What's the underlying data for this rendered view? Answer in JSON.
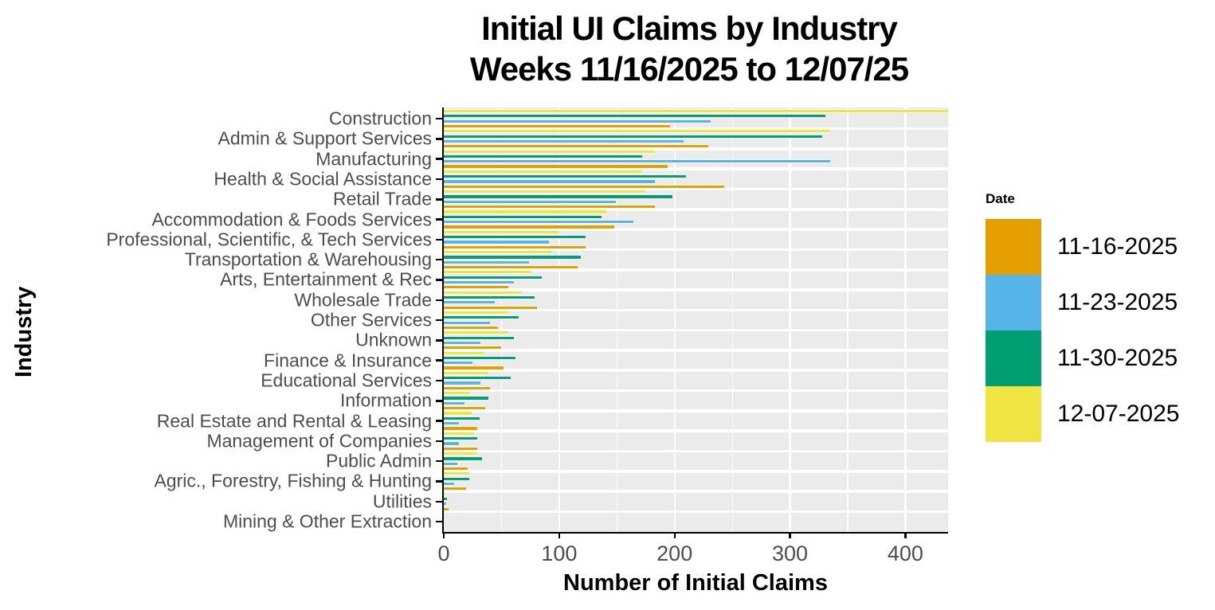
{
  "title": {
    "line1": "Initial UI Claims by Industry",
    "line2": "Weeks  11/16/2025 to 12/07/25"
  },
  "axes": {
    "x_title": "Number of Initial Claims",
    "y_title": "Industry",
    "x_tick_labels": [
      "0",
      "100",
      "200",
      "300",
      "400"
    ],
    "x_tick_values": [
      0,
      100,
      200,
      300,
      400
    ],
    "x_minor_values": [
      50,
      150,
      250,
      350
    ]
  },
  "legend": {
    "title": "Date",
    "items": [
      {
        "label": "11-16-2025",
        "color": "#E69F00"
      },
      {
        "label": "11-23-2025",
        "color": "#56B4E9"
      },
      {
        "label": "11-30-2025",
        "color": "#009E73"
      },
      {
        "label": "12-07-2025",
        "color": "#F0E442"
      }
    ]
  },
  "colors": {
    "panel_background": "#EBEBEB",
    "gridline": "#FFFFFF",
    "axis_text": "#4D4D4D",
    "axis_line": "#000000",
    "series_11_16": "#E69F00",
    "series_11_23": "#56B4E9",
    "series_11_30": "#009E73",
    "series_12_07": "#F0E442"
  },
  "chart_data": {
    "type": "bar",
    "orientation": "horizontal",
    "title": "Initial UI Claims by Industry Weeks 11/16/2025 to 12/07/25",
    "xlabel": "Number of Initial Claims",
    "ylabel": "Industry",
    "xlim": [
      0,
      437
    ],
    "grid": "white major/minor vertical gridlines on gray panel",
    "legend_position": "right",
    "legend_title": "Date",
    "categories": [
      "Construction",
      "Admin & Support Services",
      "Manufacturing",
      "Health & Social Assistance",
      "Retail Trade",
      "Accommodation & Foods Services",
      "Professional, Scientific, & Tech Services",
      "Transportation & Warehousing",
      "Arts, Entertainment & Rec",
      "Wholesale Trade",
      "Other Services",
      "Unknown",
      "Finance & Insurance",
      "Educational Services",
      "Information",
      "Real Estate and Rental & Leasing",
      "Management of Companies",
      "Public Admin",
      "Agric., Forestry, Fishing & Hunting",
      "Utilities",
      "Mining & Other Extraction"
    ],
    "series": [
      {
        "name": "11-16-2025",
        "color": "#E69F00",
        "values": [
          196,
          229,
          194,
          243,
          183,
          148,
          123,
          116,
          56,
          81,
          47,
          50,
          52,
          40,
          36,
          29,
          29,
          21,
          19,
          4,
          0
        ]
      },
      {
        "name": "11-23-2025",
        "color": "#56B4E9",
        "values": [
          231,
          208,
          335,
          183,
          149,
          164,
          91,
          74,
          61,
          44,
          40,
          32,
          25,
          32,
          18,
          13,
          13,
          12,
          9,
          2,
          0
        ]
      },
      {
        "name": "11-30-2025",
        "color": "#009E73",
        "values": [
          331,
          328,
          172,
          210,
          198,
          137,
          123,
          119,
          85,
          79,
          65,
          61,
          62,
          58,
          39,
          31,
          29,
          33,
          22,
          3,
          0
        ]
      },
      {
        "name": "12-07-2025",
        "color": "#F0E442",
        "values": [
          437,
          335,
          183,
          172,
          175,
          141,
          100,
          93,
          76,
          68,
          56,
          56,
          35,
          39,
          23,
          24,
          26,
          29,
          22,
          1,
          0
        ]
      }
    ]
  }
}
